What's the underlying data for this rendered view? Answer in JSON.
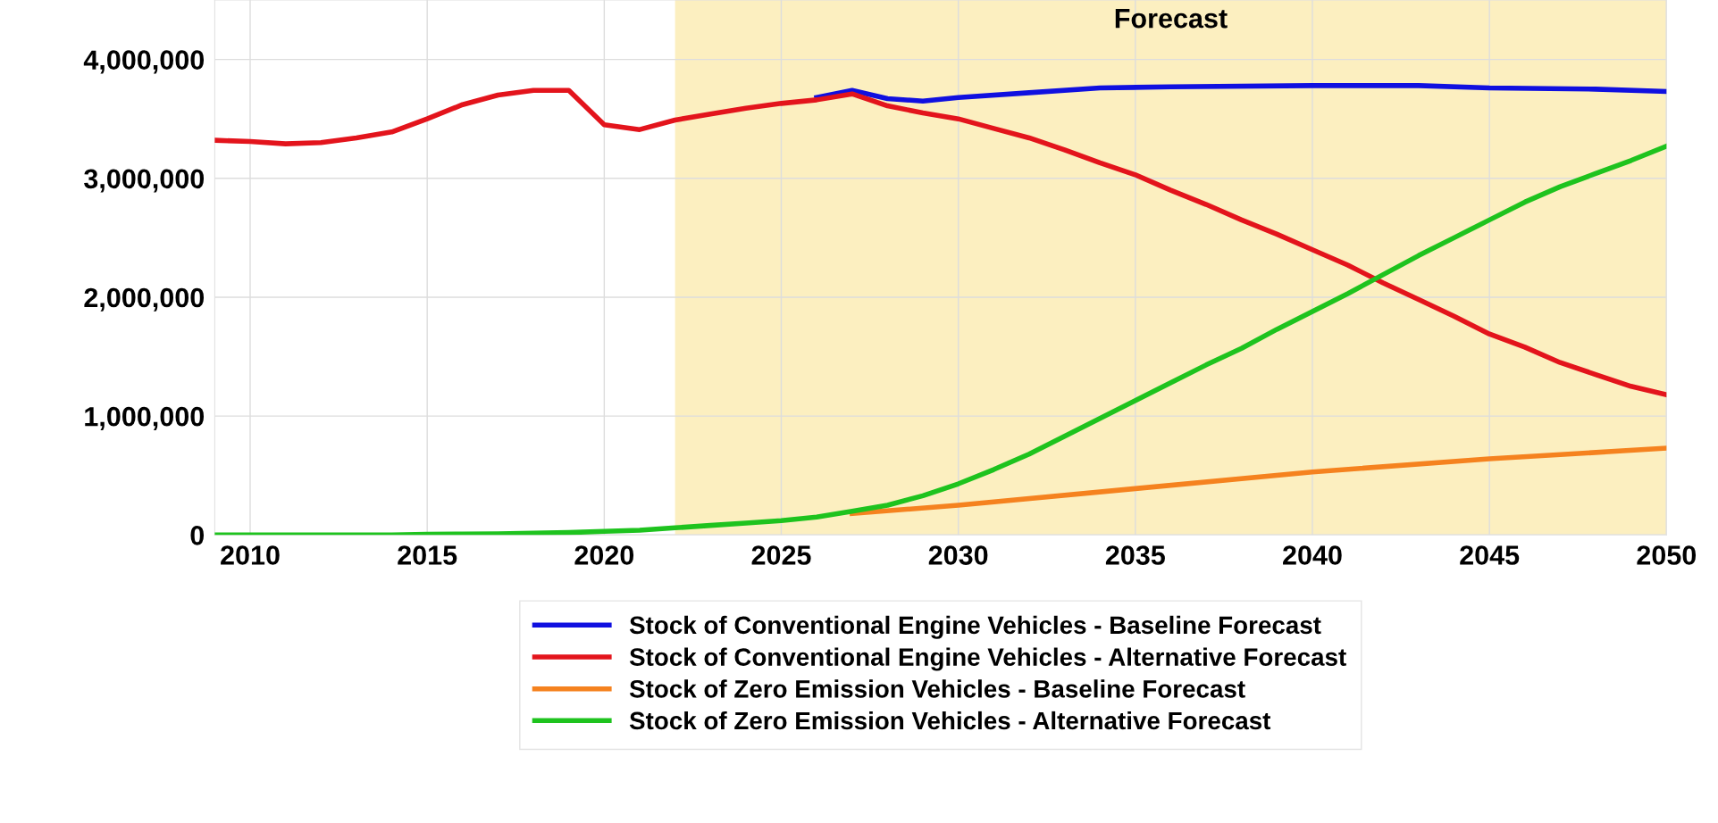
{
  "chart_data": {
    "type": "line",
    "x": [
      2009,
      2010,
      2011,
      2012,
      2013,
      2014,
      2015,
      2016,
      2017,
      2018,
      2019,
      2020,
      2021,
      2022,
      2023,
      2024,
      2025,
      2026,
      2027,
      2028,
      2029,
      2030,
      2031,
      2032,
      2033,
      2034,
      2035,
      2036,
      2037,
      2038,
      2039,
      2040,
      2041,
      2042,
      2043,
      2044,
      2045,
      2046,
      2047,
      2048,
      2049,
      2050
    ],
    "series": [
      {
        "name": "Stock of Conventional Engine Vehicles - Baseline Forecast",
        "color": "#1010e0",
        "x": [
          2026,
          2027,
          2028,
          2029,
          2030,
          2032,
          2034,
          2036,
          2040,
          2043,
          2045,
          2048,
          2050
        ],
        "values": [
          3680000,
          3740000,
          3670000,
          3650000,
          3680000,
          3720000,
          3760000,
          3770000,
          3780000,
          3780000,
          3760000,
          3750000,
          3730000
        ]
      },
      {
        "name": "Stock of Conventional Engine Vehicles - Alternative Forecast",
        "color": "#e3141c",
        "values": [
          3320000,
          3310000,
          3290000,
          3300000,
          3340000,
          3390000,
          3500000,
          3620000,
          3700000,
          3740000,
          3740000,
          3450000,
          3410000,
          3490000,
          3540000,
          3590000,
          3630000,
          3660000,
          3710000,
          3610000,
          3550000,
          3500000,
          3420000,
          3340000,
          3240000,
          3130000,
          3030000,
          2900000,
          2780000,
          2650000,
          2530000,
          2400000,
          2270000,
          2120000,
          1980000,
          1840000,
          1690000,
          1580000,
          1450000,
          1350000,
          1250000,
          1180000
        ]
      },
      {
        "name": "Stock of Zero Emission Vehicles - Baseline Forecast",
        "color": "#f5821f",
        "x": [
          2027,
          2030,
          2035,
          2040,
          2045,
          2050
        ],
        "values": [
          180000,
          250000,
          390000,
          530000,
          640000,
          730000
        ]
      },
      {
        "name": "Stock of Zero Emission Vehicles - Alternative Forecast",
        "color": "#1ec31e",
        "values": [
          0,
          0,
          0,
          0,
          0,
          0,
          5000,
          8000,
          10000,
          15000,
          20000,
          30000,
          40000,
          60000,
          80000,
          100000,
          120000,
          150000,
          200000,
          250000,
          330000,
          430000,
          550000,
          680000,
          830000,
          980000,
          1130000,
          1280000,
          1430000,
          1570000,
          1730000,
          1880000,
          2030000,
          2190000,
          2350000,
          2500000,
          2650000,
          2800000,
          2930000,
          3040000,
          3150000,
          3270000
        ]
      }
    ],
    "xlim": [
      2009,
      2050
    ],
    "ylim": [
      0,
      4500000
    ],
    "xticks": [
      2010,
      2015,
      2020,
      2025,
      2030,
      2035,
      2040,
      2045,
      2050
    ],
    "yticks": [
      {
        "value": 0,
        "label": "0"
      },
      {
        "value": 1000000,
        "label": "1,000,000"
      },
      {
        "value": 2000000,
        "label": "2,000,000"
      },
      {
        "value": 3000000,
        "label": "3,000,000"
      },
      {
        "value": 4000000,
        "label": "4,000,000"
      }
    ],
    "bands": [
      {
        "axis": "x",
        "from": 2022,
        "to": 2050,
        "label": "Forecast",
        "color": "#fcefc0"
      }
    ],
    "grid": true,
    "legend": "bottom",
    "line_style": "solid",
    "marker": "none"
  }
}
